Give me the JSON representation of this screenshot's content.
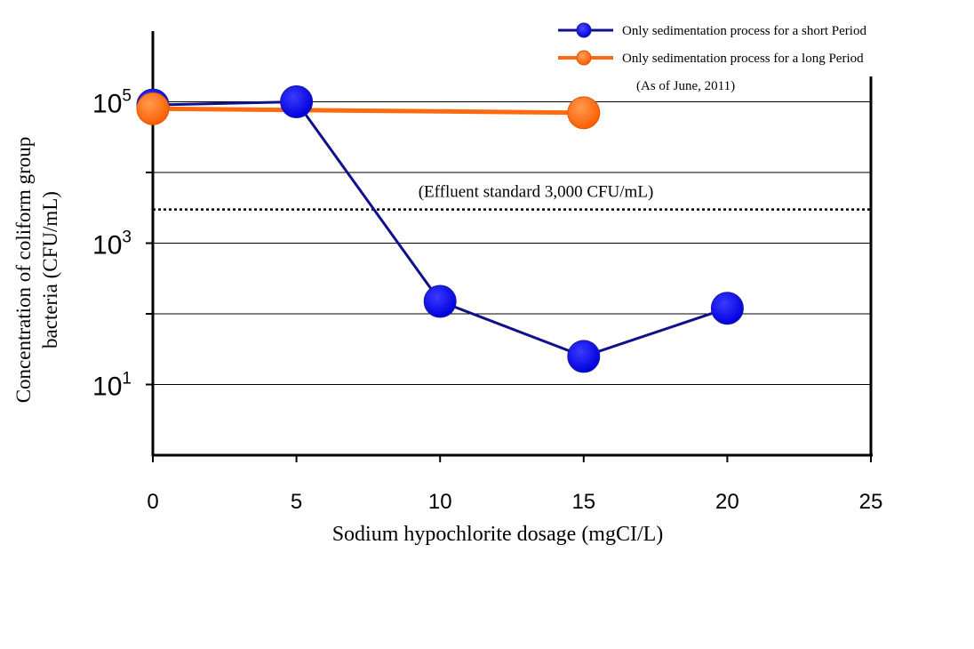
{
  "chart_data": {
    "type": "line",
    "xlabel": "Sodium hypochlorite dosage (mgCI/L)",
    "ylabel_line1": "Concentration of coliform group",
    "ylabel_line2": "bacteria (CFU/mL)",
    "x_ticks": [
      "0",
      "5",
      "10",
      "15",
      "20",
      "25"
    ],
    "xlim": [
      0,
      25
    ],
    "y_scale": "log",
    "ylim": [
      1,
      1000000
    ],
    "y_tick_labels": [
      {
        "value": 100000,
        "base": "10",
        "exp": "5"
      },
      {
        "value": 1000,
        "base": "10",
        "exp": "3"
      },
      {
        "value": 10,
        "base": "10",
        "exp": "1"
      }
    ],
    "y_minor_ticks": [
      10000,
      100
    ],
    "gridlines": [
      100000,
      10000,
      1000,
      100,
      10
    ],
    "grid": true,
    "legend_position": "top-right",
    "legend_note": "(As of June, 2011)",
    "reference_line": {
      "value": 3000,
      "label": "(Effluent standard 3,000 CFU/mL)",
      "style": "dotted"
    },
    "series": [
      {
        "name": "Only sedimentation process for a short Period",
        "color": "#0000ee",
        "line_color": "#10108c",
        "x": [
          0,
          5,
          10,
          15,
          20
        ],
        "y": [
          90000,
          100000,
          150,
          25,
          120
        ]
      },
      {
        "name": "Only sedimentation process for a long Period",
        "color": "#ff6a10",
        "line_color": "#ff6a10",
        "x": [
          0,
          15
        ],
        "y": [
          80000,
          70000
        ]
      }
    ]
  }
}
